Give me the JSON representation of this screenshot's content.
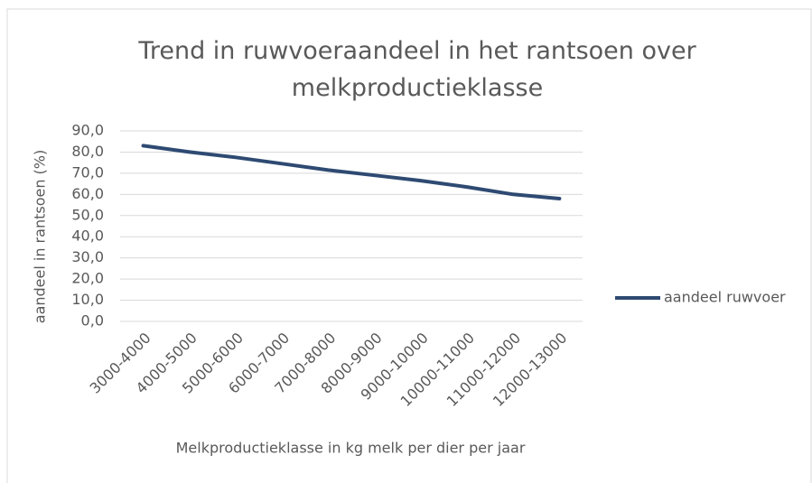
{
  "chart_data": {
    "type": "line",
    "title": "Trend in ruwvoeraandeel in het rantsoen over melkproductieklasse",
    "x_label": "Melkproductieklasse in kg melk per dier per jaar",
    "y_label": "aandeel in rantsoen (%)",
    "categories": [
      "3000-4000",
      "4000-5000",
      "5000-6000",
      "6000-7000",
      "7000-8000",
      "8000-9000",
      "9000-10000",
      "10000-11000",
      "11000-12000",
      "12000-13000"
    ],
    "series": [
      {
        "name": "aandeel ruwvoer",
        "color": "#2e4a72",
        "values": [
          83,
          80,
          77.5,
          74.5,
          71.5,
          69,
          66.5,
          63.5,
          60,
          58
        ]
      }
    ],
    "ylim": [
      0,
      90
    ],
    "yticks": [
      {
        "value": 0,
        "label": "0,0"
      },
      {
        "value": 10,
        "label": "10,0"
      },
      {
        "value": 20,
        "label": "20,0"
      },
      {
        "value": 30,
        "label": "30,0"
      },
      {
        "value": 40,
        "label": "40,0"
      },
      {
        "value": 50,
        "label": "50,0"
      },
      {
        "value": 60,
        "label": "60,0"
      },
      {
        "value": 70,
        "label": "70,0"
      },
      {
        "value": 80,
        "label": "80,0"
      },
      {
        "value": 90,
        "label": "90,0"
      }
    ],
    "grid": true,
    "legend": "right"
  }
}
